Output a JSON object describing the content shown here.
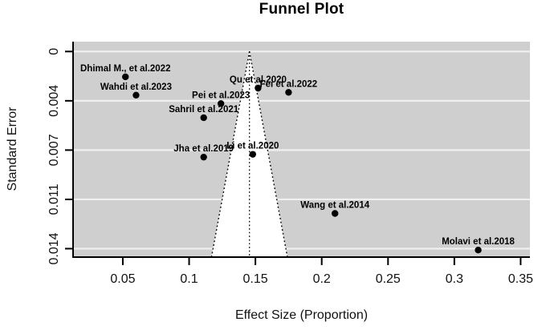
{
  "title": "Funnel Plot",
  "chart_data": {
    "type": "scatter",
    "subtype": "funnel-plot",
    "title": "Funnel Plot",
    "xlabel": "Effect Size (Proportion)",
    "ylabel": "Standard Error",
    "legend": "none",
    "grid": "horizontal white gridlines on light gray panel",
    "y_axis_inverted": true,
    "x_range": [
      0.0125,
      0.357
    ],
    "y_range": [
      -0.0007,
      0.0146
    ],
    "x_ticks": {
      "values": [
        0.05,
        0.1,
        0.15,
        0.2,
        0.25,
        0.3,
        0.35
      ],
      "labels": [
        "0.05",
        "0.1",
        "0.15",
        "0.2",
        "0.25",
        "0.3",
        "0.35"
      ]
    },
    "y_ticks": {
      "values": [
        0,
        0.0035,
        0.007,
        0.0105,
        0.014
      ],
      "labels": [
        "0",
        "0.004",
        "0.007",
        "0.011",
        "0.014"
      ]
    },
    "funnel": {
      "center_effect": 0.1455,
      "se_apex": 0,
      "se_bottom": 0.0146,
      "ci_multiplier": 1.96,
      "center_line_style": "dashed",
      "edge_line_style": "dotted"
    },
    "points": [
      {
        "label": "Dhimal M., et al.2022",
        "effect_size": 0.052,
        "standard_error": 0.0018
      },
      {
        "label": "Wahdi et al.2023",
        "effect_size": 0.06,
        "standard_error": 0.0031
      },
      {
        "label": "Qu et al.2020",
        "effect_size": 0.152,
        "standard_error": 0.0026
      },
      {
        "label": "Fei et al.2022",
        "effect_size": 0.175,
        "standard_error": 0.0029
      },
      {
        "label": "Pei et al.2023",
        "effect_size": 0.124,
        "standard_error": 0.0037
      },
      {
        "label": "Sahril et al.2021",
        "effect_size": 0.111,
        "standard_error": 0.0047
      },
      {
        "label": "Jha et al.2019",
        "effect_size": 0.111,
        "standard_error": 0.0075
      },
      {
        "label": "Li et al.2020",
        "effect_size": 0.148,
        "standard_error": 0.0073
      },
      {
        "label": "Wang et al.2014",
        "effect_size": 0.21,
        "standard_error": 0.0115
      },
      {
        "label": "Molavi et al.2018",
        "effect_size": 0.318,
        "standard_error": 0.0141
      }
    ],
    "colors": {
      "panel_bg": "#cfcfcf",
      "gridline": "#f0f0f0",
      "funnel_fill": "#ffffff",
      "line": "#000000",
      "point": "#000000",
      "text": "#111111"
    }
  }
}
